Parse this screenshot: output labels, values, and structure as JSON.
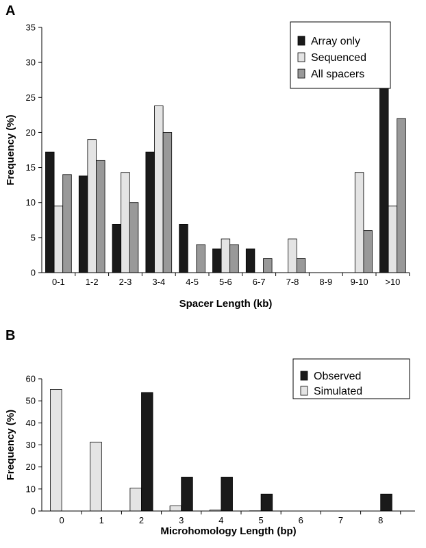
{
  "chart_data": [
    {
      "panel": "A",
      "type": "bar",
      "xlabel": "Spacer Length (kb)",
      "ylabel": "Frequency (%)",
      "ylim": [
        0,
        35
      ],
      "yticks": [
        0,
        5,
        10,
        15,
        20,
        25,
        30,
        35
      ],
      "categories": [
        "0-1",
        "1-2",
        "2-3",
        "3-4",
        "4-5",
        "5-6",
        "6-7",
        "7-8",
        "8-9",
        "9-10",
        ">10"
      ],
      "series": [
        {
          "name": "Array only",
          "color": "#1a1a1a",
          "values": [
            17.2,
            13.8,
            6.9,
            17.2,
            6.9,
            3.4,
            3.4,
            0,
            0,
            0,
            31.0
          ]
        },
        {
          "name": "Sequenced",
          "color": "#e4e4e4",
          "values": [
            9.5,
            19.0,
            14.3,
            23.8,
            0,
            4.8,
            0,
            4.8,
            0,
            14.3,
            9.5
          ]
        },
        {
          "name": "All spacers",
          "color": "#999999",
          "values": [
            14,
            16,
            10,
            20,
            4,
            4,
            2,
            2,
            0,
            6,
            22
          ]
        }
      ],
      "legend": "top-right",
      "grid": false
    },
    {
      "panel": "B",
      "type": "bar",
      "xlabel": "Microhomology Length (bp)",
      "ylabel": "Frequency (%)",
      "ylim": [
        0,
        60
      ],
      "yticks": [
        0,
        10,
        20,
        30,
        40,
        50,
        60
      ],
      "categories": [
        "0",
        "1",
        "2",
        "3",
        "4",
        "5",
        "6",
        "7",
        "8"
      ],
      "series": [
        {
          "name": "Simulated",
          "color": "#e4e4e4",
          "values": [
            55.2,
            31.3,
            10.4,
            2.3,
            0.5,
            0.1,
            0,
            0,
            0
          ]
        },
        {
          "name": "Observed",
          "color": "#1a1a1a",
          "values": [
            0,
            0,
            53.8,
            15.4,
            15.4,
            7.7,
            0,
            0,
            7.7
          ]
        }
      ],
      "legend_order": [
        "Observed",
        "Simulated"
      ],
      "legend": "top-right",
      "grid": false
    }
  ]
}
